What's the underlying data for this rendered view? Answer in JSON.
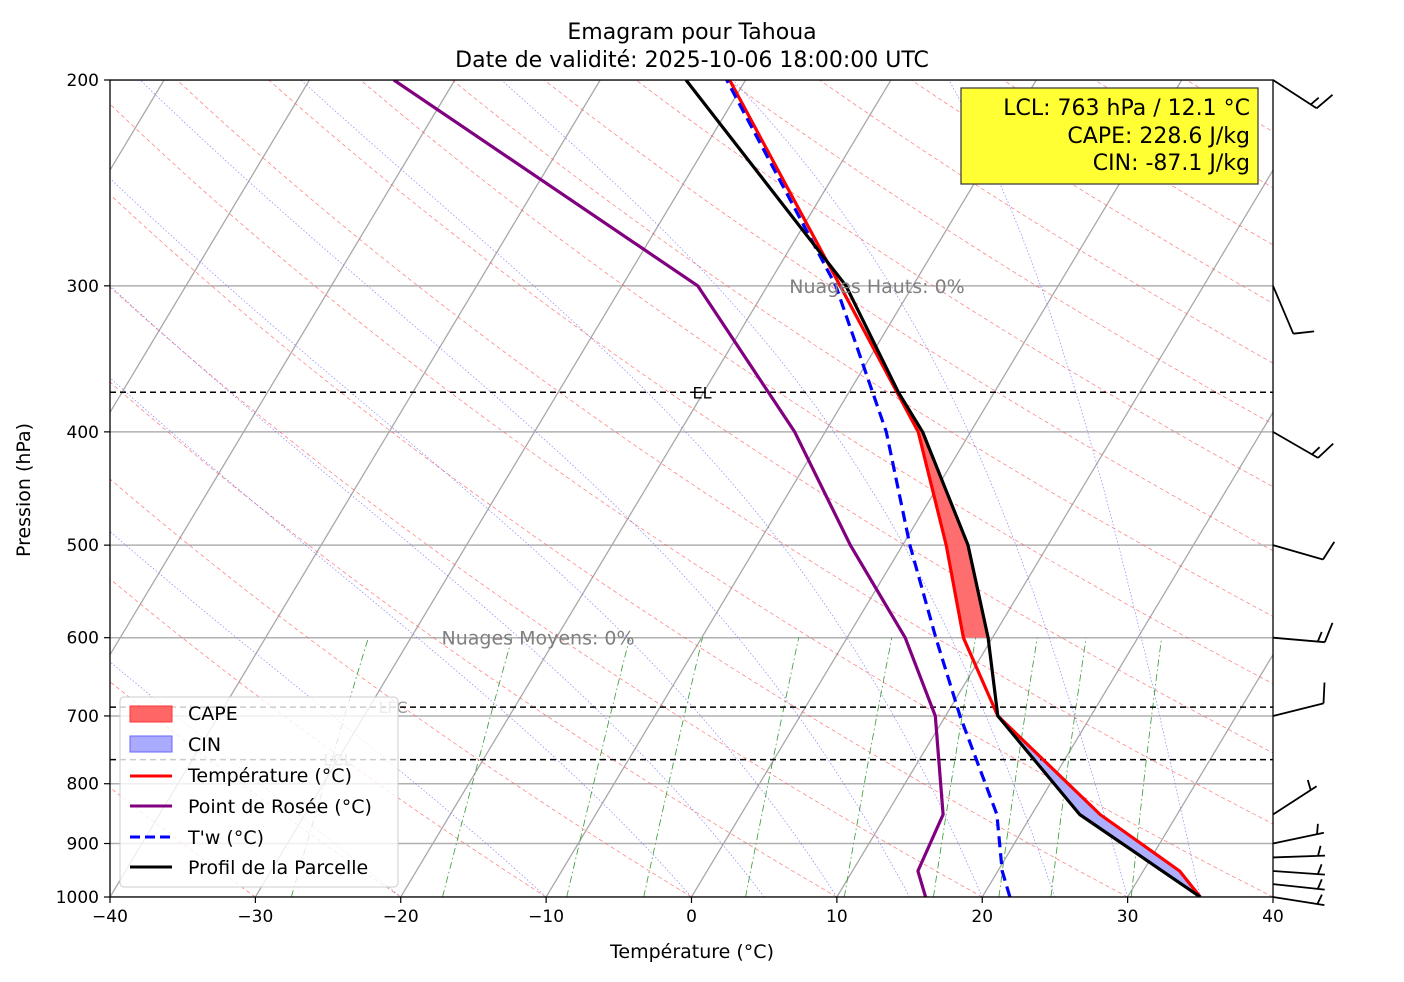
{
  "chart_data": {
    "type": "line",
    "title": "Emagram pour Tahoua",
    "subtitle": "Date de validité: 2025-10-06 18:00:00 UTC",
    "xlabel": "Température (°C)",
    "ylabel": "Pression (hPa)",
    "xlim": [
      -40,
      40
    ],
    "ylim": [
      1000,
      200
    ],
    "y_scale": "log",
    "x_ticks": [
      "−40",
      "−30",
      "−20",
      "−10",
      "0",
      "10",
      "20",
      "30",
      "40"
    ],
    "x_tick_values": [
      -40,
      -30,
      -20,
      -10,
      0,
      10,
      20,
      30,
      40
    ],
    "y_ticks": [
      "200",
      "300",
      "400",
      "500",
      "600",
      "700",
      "800",
      "900",
      "1000"
    ],
    "y_tick_values": [
      200,
      300,
      400,
      500,
      600,
      700,
      800,
      900,
      1000
    ],
    "grid": true,
    "legend_position": "bottom-left",
    "series": [
      {
        "name": "Température (°C)",
        "color": "#ff0000",
        "style": "solid",
        "p": [
          1000,
          950,
          850,
          700,
          600,
          500,
          400,
          300,
          200
        ],
        "t": [
          35.0,
          32.5,
          24.7,
          13.6,
          8.0,
          3.0,
          -3.6,
          -15.0,
          -31.1
        ]
      },
      {
        "name": "Point de Rosée (°C)",
        "color": "#800080",
        "style": "solid",
        "p": [
          1000,
          950,
          850,
          700,
          600,
          500,
          400,
          300,
          200
        ],
        "t": [
          16.1,
          14.5,
          13.9,
          9.3,
          4.0,
          -3.6,
          -12.1,
          -24.8,
          -54.2
        ]
      },
      {
        "name": "T'w (°C)",
        "color": "#0000ff",
        "style": "dashed",
        "p": [
          1000,
          950,
          850,
          700,
          600,
          500,
          400,
          300,
          200
        ],
        "t": [
          21.9,
          20.3,
          17.6,
          11.0,
          6.1,
          0.5,
          -5.8,
          -15.3,
          -31.3
        ]
      },
      {
        "name": "Profil de la Parcelle",
        "color": "#000000",
        "style": "solid",
        "p": [
          1000,
          850,
          700,
          600,
          500,
          400,
          370,
          300,
          200
        ],
        "t": [
          35.0,
          23.3,
          13.6,
          9.7,
          4.5,
          -3.3,
          -6.6,
          -14.6,
          -34.1
        ]
      }
    ],
    "shaded": [
      {
        "name": "CAPE",
        "color": "#ff0000",
        "p_range": [
          600,
          370
        ]
      },
      {
        "name": "CIN",
        "color": "#0000ff",
        "p_range": [
          1000,
          700
        ]
      }
    ],
    "levels": [
      {
        "name": "EL",
        "p": 370
      },
      {
        "name": "LFC",
        "p": 688
      },
      {
        "name": "LCL",
        "p": 763
      }
    ],
    "annotations": [
      {
        "text": "Nuages Hauts: 0%",
        "p": 300,
        "t": -18.5
      },
      {
        "text": "Nuages Moyens: 0%",
        "p": 600,
        "t": -27.9
      }
    ],
    "info_box": [
      "LCL: 763 hPa / 12.1 °C",
      "CAPE: 228.6 J/kg",
      "CIN: -87.1 J/kg"
    ],
    "wind_barbs": [
      {
        "p": 200,
        "dir": 123,
        "kt": 15
      },
      {
        "p": 300,
        "dir": 157,
        "kt": 10
      },
      {
        "p": 400,
        "dir": 120,
        "kt": 15
      },
      {
        "p": 500,
        "dir": 106,
        "kt": 10
      },
      {
        "p": 600,
        "dir": 95,
        "kt": 15
      },
      {
        "p": 700,
        "dir": 76,
        "kt": 10
      },
      {
        "p": 850,
        "dir": 57,
        "kt": 5
      },
      {
        "p": 900,
        "dir": 78,
        "kt": 5
      },
      {
        "p": 925,
        "dir": 88,
        "kt": 5
      },
      {
        "p": 950,
        "dir": 94,
        "kt": 5
      },
      {
        "p": 975,
        "dir": 96,
        "kt": 5
      },
      {
        "p": 1000,
        "dir": 99,
        "kt": 5
      }
    ],
    "dry_adiabats_theta_C": [
      -30,
      -20,
      -10,
      0,
      10,
      20,
      30,
      40,
      50,
      60,
      70,
      80,
      90,
      100,
      110,
      120,
      130,
      140,
      150,
      160
    ],
    "moist_adiabats_T1000_C": [
      -20,
      -10,
      0,
      5,
      10,
      15,
      20,
      25,
      30,
      35
    ],
    "mixing_ratio_lines_gkg": [
      0.4,
      1,
      2,
      3,
      5,
      8,
      12,
      16,
      20,
      28
    ],
    "legend": [
      "CAPE",
      "CIN",
      "Température (°C)",
      "Point de Rosée (°C)",
      "T'w (°C)",
      "Profil de la Parcelle"
    ]
  }
}
